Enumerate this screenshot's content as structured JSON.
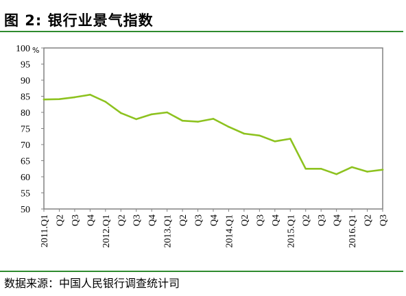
{
  "header": {
    "title": "图 2: 银行业景气指数"
  },
  "footer": {
    "source": "数据来源：中国人民银行调查统计司"
  },
  "colors": {
    "line": "#8DC21F",
    "rule": "#2E8B2E",
    "plot_border": "#808080"
  },
  "chart_data": {
    "type": "line",
    "title": "图 2: 银行业景气指数",
    "ylabel": "%",
    "ylim": [
      50,
      100
    ],
    "yticks": [
      "100",
      "95",
      "90",
      "85",
      "80",
      "75",
      "70",
      "65",
      "60",
      "55",
      "50"
    ],
    "grid": false,
    "legend": "none",
    "categories": [
      "2011.Q1",
      "Q2",
      "Q3",
      "Q4",
      "2012.Q1",
      "Q2",
      "Q3",
      "Q4",
      "2013.Q1",
      "Q2",
      "Q3",
      "Q4",
      "2014.Q1",
      "Q2",
      "Q3",
      "Q4",
      "2015.Q1",
      "Q2",
      "Q3",
      "Q4",
      "2016.Q1",
      "Q2",
      "Q3"
    ],
    "series": [
      {
        "values": [
          84.0,
          84.1,
          84.7,
          85.5,
          83.3,
          79.8,
          77.9,
          79.4,
          80.0,
          77.4,
          77.1,
          78.0,
          75.5,
          73.4,
          72.8,
          71.0,
          71.8,
          62.5,
          62.5,
          60.8,
          63.0,
          61.6,
          62.2
        ]
      }
    ]
  }
}
